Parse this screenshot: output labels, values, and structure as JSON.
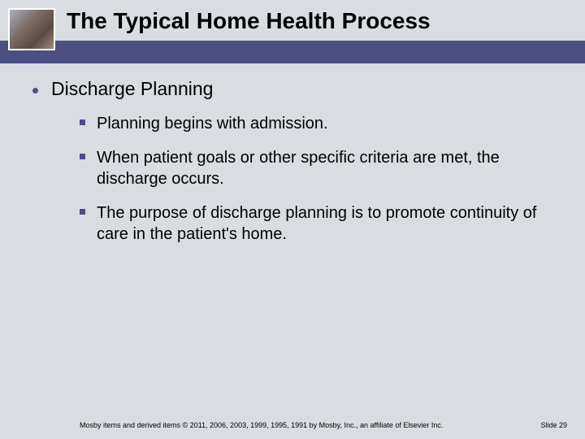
{
  "colors": {
    "background": "#d9dde2",
    "bar": "#4b4f84",
    "bullet": "#4b4f84",
    "text": "#000000"
  },
  "header": {
    "title": "The Typical Home Health Process"
  },
  "main": {
    "heading": "Discharge Planning",
    "subpoints": [
      "Planning begins with admission.",
      "When patient goals or other specific criteria are met, the discharge occurs.",
      "The purpose of discharge planning is to promote continuity of care in the patient's home."
    ]
  },
  "footer": {
    "copyright": "Mosby items and derived items © 2011, 2006, 2003, 1999, 1995, 1991 by Mosby, Inc., an affiliate of Elsevier Inc.",
    "slide": "Slide 29"
  }
}
